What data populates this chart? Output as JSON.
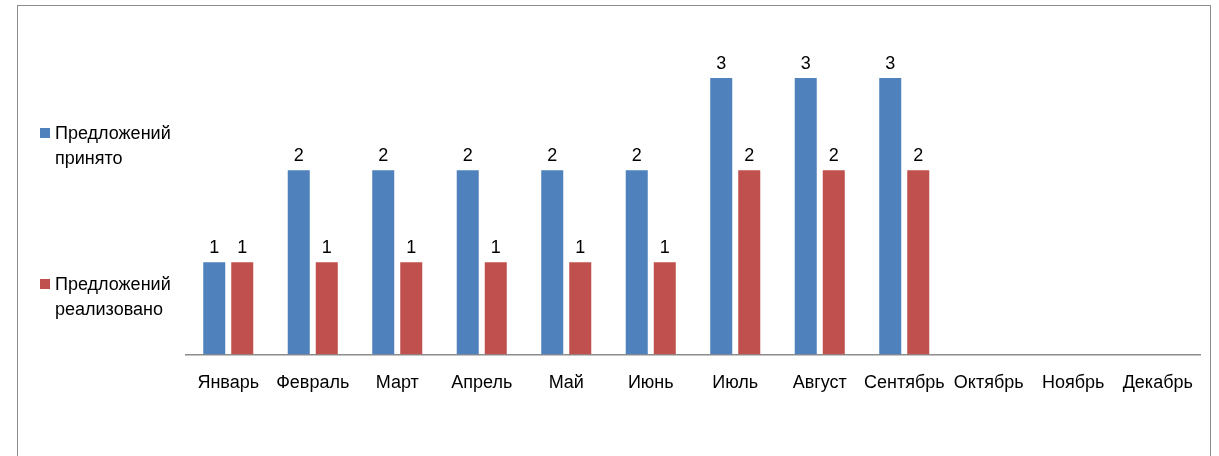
{
  "chart_data": {
    "type": "bar",
    "categories": [
      "Январь",
      "Февраль",
      "Март",
      "Апрель",
      "Май",
      "Июнь",
      "Июль",
      "Август",
      "Сентябрь",
      "Октябрь",
      "Ноябрь",
      "Декабрь"
    ],
    "series": [
      {
        "name": "Предложений принято",
        "color": "#4f81bd",
        "values": [
          1,
          2,
          2,
          2,
          2,
          2,
          3,
          3,
          3,
          null,
          null,
          null
        ]
      },
      {
        "name": "Предложений реализовано",
        "color": "#c0504d",
        "values": [
          1,
          1,
          1,
          1,
          1,
          1,
          2,
          2,
          2,
          null,
          null,
          null
        ]
      }
    ],
    "data_labels": true,
    "legend": "left",
    "tick_labels": "x"
  }
}
